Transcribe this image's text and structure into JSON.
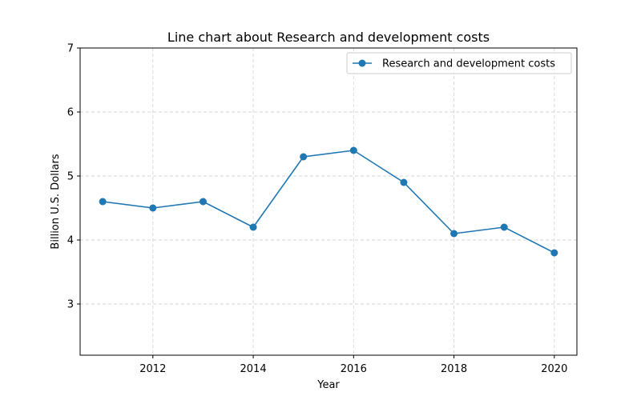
{
  "chart_data": {
    "type": "line",
    "title": "Line chart about Research and development costs",
    "xlabel": "Year",
    "ylabel": "Billion U.S. Dollars",
    "x": [
      2011,
      2012,
      2013,
      2014,
      2015,
      2016,
      2017,
      2018,
      2019,
      2020
    ],
    "series": [
      {
        "name": "Research and development costs",
        "values": [
          4.6,
          4.5,
          4.6,
          4.2,
          5.3,
          5.4,
          4.9,
          4.1,
          4.2,
          3.8
        ],
        "color": "#1f77b4"
      }
    ],
    "xlim": [
      2010.55,
      2020.45
    ],
    "ylim": [
      2.2,
      7.0
    ],
    "xticks": [
      2012,
      2014,
      2016,
      2018,
      2020
    ],
    "yticks": [
      3,
      4,
      5,
      6,
      7
    ],
    "grid": true,
    "legend": "top-right"
  }
}
